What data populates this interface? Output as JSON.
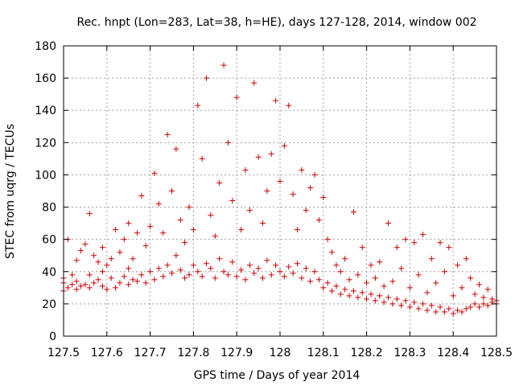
{
  "chart_data": {
    "type": "scatter",
    "title": "Rec. hnpt (Lon=283, Lat=38, h=HE), days 127-128, 2014, window 002",
    "xlabel": "GPS time / Days of year 2014",
    "ylabel": "STEC from uqrg / TECUs",
    "xlim": [
      127.5,
      128.5
    ],
    "ylim": [
      0,
      180
    ],
    "xticks": [
      127.5,
      127.6,
      127.7,
      127.8,
      127.9,
      128,
      128.1,
      128.2,
      128.3,
      128.4,
      128.5
    ],
    "xtick_labels": [
      "127.5",
      "127.6",
      "127.7",
      "127.8",
      "127.9",
      "128",
      "128.1",
      "128.2",
      "128.3",
      "128.4",
      "128.5"
    ],
    "yticks": [
      0,
      20,
      40,
      60,
      80,
      100,
      120,
      140,
      160,
      180
    ],
    "ytick_labels": [
      "0",
      "20",
      "40",
      "60",
      "80",
      "100",
      "120",
      "140",
      "160",
      "180"
    ],
    "grid": true,
    "legend": "none",
    "marker": "+",
    "color": "#cc0000",
    "series": [
      {
        "points": [
          [
            127.5,
            28
          ],
          [
            127.5,
            33
          ],
          [
            127.5,
            36
          ],
          [
            127.51,
            30
          ],
          [
            127.51,
            60
          ],
          [
            127.52,
            32
          ],
          [
            127.52,
            38
          ],
          [
            127.53,
            29
          ],
          [
            127.53,
            34
          ],
          [
            127.53,
            47
          ],
          [
            127.54,
            31
          ],
          [
            127.54,
            53
          ],
          [
            127.55,
            32
          ],
          [
            127.55,
            57
          ],
          [
            127.56,
            30
          ],
          [
            127.56,
            38
          ],
          [
            127.56,
            76
          ],
          [
            127.57,
            33
          ],
          [
            127.57,
            50
          ],
          [
            127.58,
            35
          ],
          [
            127.58,
            46
          ],
          [
            127.59,
            31
          ],
          [
            127.59,
            40
          ],
          [
            127.59,
            55
          ],
          [
            127.6,
            29
          ],
          [
            127.6,
            44
          ],
          [
            127.61,
            36
          ],
          [
            127.61,
            48
          ],
          [
            127.62,
            30
          ],
          [
            127.62,
            66
          ],
          [
            127.63,
            33
          ],
          [
            127.63,
            52
          ],
          [
            127.64,
            37
          ],
          [
            127.64,
            60
          ],
          [
            127.65,
            32
          ],
          [
            127.65,
            42
          ],
          [
            127.65,
            70
          ],
          [
            127.66,
            35
          ],
          [
            127.66,
            48
          ],
          [
            127.67,
            34
          ],
          [
            127.67,
            64
          ],
          [
            127.68,
            38
          ],
          [
            127.68,
            87
          ],
          [
            127.69,
            33
          ],
          [
            127.69,
            56
          ],
          [
            127.7,
            40
          ],
          [
            127.7,
            68
          ],
          [
            127.71,
            35
          ],
          [
            127.71,
            101
          ],
          [
            127.72,
            42
          ],
          [
            127.72,
            82
          ],
          [
            127.73,
            37
          ],
          [
            127.73,
            64
          ],
          [
            127.74,
            44
          ],
          [
            127.74,
            125
          ],
          [
            127.75,
            39
          ],
          [
            127.75,
            90
          ],
          [
            127.76,
            50
          ],
          [
            127.76,
            116
          ],
          [
            127.77,
            41
          ],
          [
            127.77,
            72
          ],
          [
            127.78,
            36
          ],
          [
            127.78,
            58
          ],
          [
            127.79,
            38
          ],
          [
            127.79,
            80
          ],
          [
            127.8,
            44
          ],
          [
            127.8,
            66
          ],
          [
            127.81,
            40
          ],
          [
            127.81,
            143
          ],
          [
            127.82,
            37
          ],
          [
            127.82,
            110
          ],
          [
            127.83,
            45
          ],
          [
            127.83,
            160
          ],
          [
            127.84,
            42
          ],
          [
            127.84,
            75
          ],
          [
            127.85,
            36
          ],
          [
            127.85,
            62
          ],
          [
            127.86,
            48
          ],
          [
            127.86,
            95
          ],
          [
            127.87,
            40
          ],
          [
            127.87,
            168
          ],
          [
            127.88,
            38
          ],
          [
            127.88,
            120
          ],
          [
            127.89,
            46
          ],
          [
            127.89,
            84
          ],
          [
            127.9,
            37
          ],
          [
            127.9,
            148
          ],
          [
            127.91,
            41
          ],
          [
            127.91,
            66
          ],
          [
            127.92,
            35
          ],
          [
            127.92,
            103
          ],
          [
            127.93,
            44
          ],
          [
            127.93,
            78
          ],
          [
            127.94,
            39
          ],
          [
            127.94,
            157
          ],
          [
            127.95,
            42
          ],
          [
            127.95,
            111
          ],
          [
            127.96,
            36
          ],
          [
            127.96,
            70
          ],
          [
            127.97,
            47
          ],
          [
            127.97,
            90
          ],
          [
            127.98,
            38
          ],
          [
            127.98,
            113
          ],
          [
            127.99,
            44
          ],
          [
            127.99,
            146
          ],
          [
            128.0,
            40
          ],
          [
            128.0,
            96
          ],
          [
            128.01,
            37
          ],
          [
            128.01,
            118
          ],
          [
            128.02,
            43
          ],
          [
            128.02,
            143
          ],
          [
            128.03,
            39
          ],
          [
            128.03,
            88
          ],
          [
            128.04,
            45
          ],
          [
            128.04,
            66
          ],
          [
            128.05,
            36
          ],
          [
            128.05,
            103
          ],
          [
            128.06,
            42
          ],
          [
            128.06,
            78
          ],
          [
            128.07,
            34
          ],
          [
            128.07,
            92
          ],
          [
            128.08,
            40
          ],
          [
            128.08,
            100
          ],
          [
            128.09,
            35
          ],
          [
            128.09,
            72
          ],
          [
            128.1,
            30
          ],
          [
            128.1,
            86
          ],
          [
            128.11,
            33
          ],
          [
            128.11,
            60
          ],
          [
            128.12,
            28
          ],
          [
            128.12,
            52
          ],
          [
            128.13,
            31
          ],
          [
            128.13,
            44
          ],
          [
            128.14,
            26
          ],
          [
            128.14,
            40
          ],
          [
            128.15,
            29
          ],
          [
            128.15,
            48
          ],
          [
            128.16,
            25
          ],
          [
            128.16,
            35
          ],
          [
            128.17,
            28
          ],
          [
            128.17,
            77
          ],
          [
            128.18,
            24
          ],
          [
            128.18,
            38
          ],
          [
            128.19,
            27
          ],
          [
            128.19,
            55
          ],
          [
            128.2,
            23
          ],
          [
            128.2,
            33
          ],
          [
            128.21,
            26
          ],
          [
            128.21,
            44
          ],
          [
            128.22,
            22
          ],
          [
            128.22,
            36
          ],
          [
            128.23,
            25
          ],
          [
            128.23,
            46
          ],
          [
            128.24,
            21
          ],
          [
            128.24,
            31
          ],
          [
            128.25,
            24
          ],
          [
            128.25,
            70
          ],
          [
            128.26,
            20
          ],
          [
            128.26,
            34
          ],
          [
            128.27,
            23
          ],
          [
            128.27,
            55
          ],
          [
            128.28,
            19
          ],
          [
            128.28,
            42
          ],
          [
            128.29,
            22
          ],
          [
            128.29,
            60
          ],
          [
            128.3,
            18
          ],
          [
            128.3,
            30
          ],
          [
            128.31,
            21
          ],
          [
            128.31,
            58
          ],
          [
            128.32,
            17
          ],
          [
            128.32,
            38
          ],
          [
            128.33,
            20
          ],
          [
            128.33,
            63
          ],
          [
            128.34,
            16
          ],
          [
            128.34,
            27
          ],
          [
            128.35,
            19
          ],
          [
            128.35,
            48
          ],
          [
            128.36,
            15
          ],
          [
            128.36,
            33
          ],
          [
            128.37,
            18
          ],
          [
            128.37,
            58
          ],
          [
            128.38,
            15
          ],
          [
            128.38,
            40
          ],
          [
            128.39,
            17
          ],
          [
            128.39,
            55
          ],
          [
            128.4,
            14
          ],
          [
            128.4,
            25
          ],
          [
            128.41,
            16
          ],
          [
            128.41,
            44
          ],
          [
            128.42,
            15
          ],
          [
            128.42,
            30
          ],
          [
            128.43,
            17
          ],
          [
            128.43,
            48
          ],
          [
            128.44,
            18
          ],
          [
            128.44,
            36
          ],
          [
            128.45,
            20
          ],
          [
            128.45,
            26
          ],
          [
            128.46,
            18
          ],
          [
            128.46,
            32
          ],
          [
            128.47,
            20
          ],
          [
            128.47,
            24
          ],
          [
            128.48,
            19
          ],
          [
            128.48,
            29
          ],
          [
            128.49,
            21
          ],
          [
            128.49,
            23
          ],
          [
            128.5,
            20
          ],
          [
            128.5,
            22
          ]
        ]
      }
    ]
  }
}
